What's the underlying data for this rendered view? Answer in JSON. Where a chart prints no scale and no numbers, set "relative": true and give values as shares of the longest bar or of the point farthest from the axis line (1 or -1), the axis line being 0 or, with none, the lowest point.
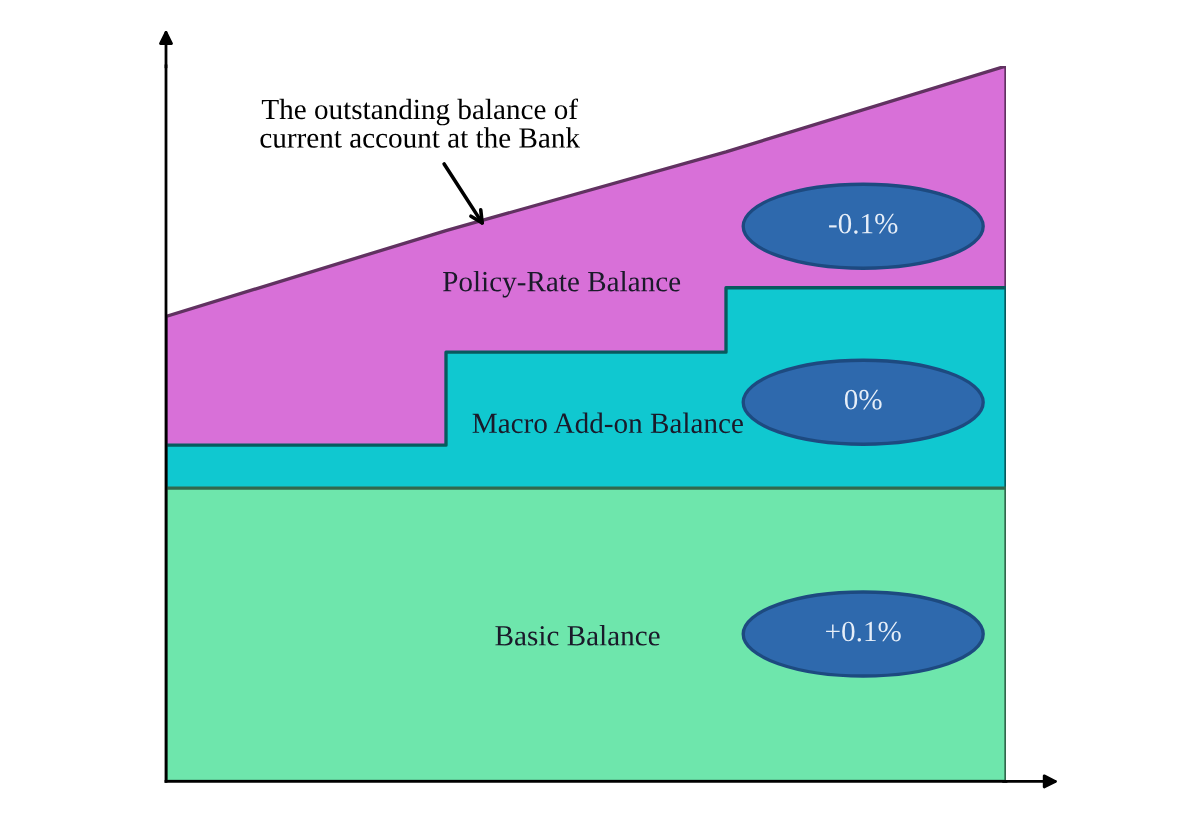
{
  "chart_data": {
    "type": "area",
    "relative": true,
    "categories": [
      null,
      null,
      null,
      null
    ],
    "series": [
      {
        "name": "Policy-Rate Balance",
        "color": "#d870d8",
        "values": [
          0.65,
          0.77,
          0.88,
          1.0
        ]
      },
      {
        "name": "Macro Add-on Balance",
        "color": "#10c8d0",
        "values": [
          0.47,
          0.6,
          0.69,
          0.69
        ]
      },
      {
        "name": "Basic Balance",
        "color": "#6ee6ac",
        "values": [
          0.41,
          0.41,
          0.41,
          0.41
        ]
      }
    ],
    "annotations": [
      "The outstanding balance of\ncurrent account at the Bank",
      "-0.1%",
      "0%",
      "+0.1%"
    ]
  }
}
